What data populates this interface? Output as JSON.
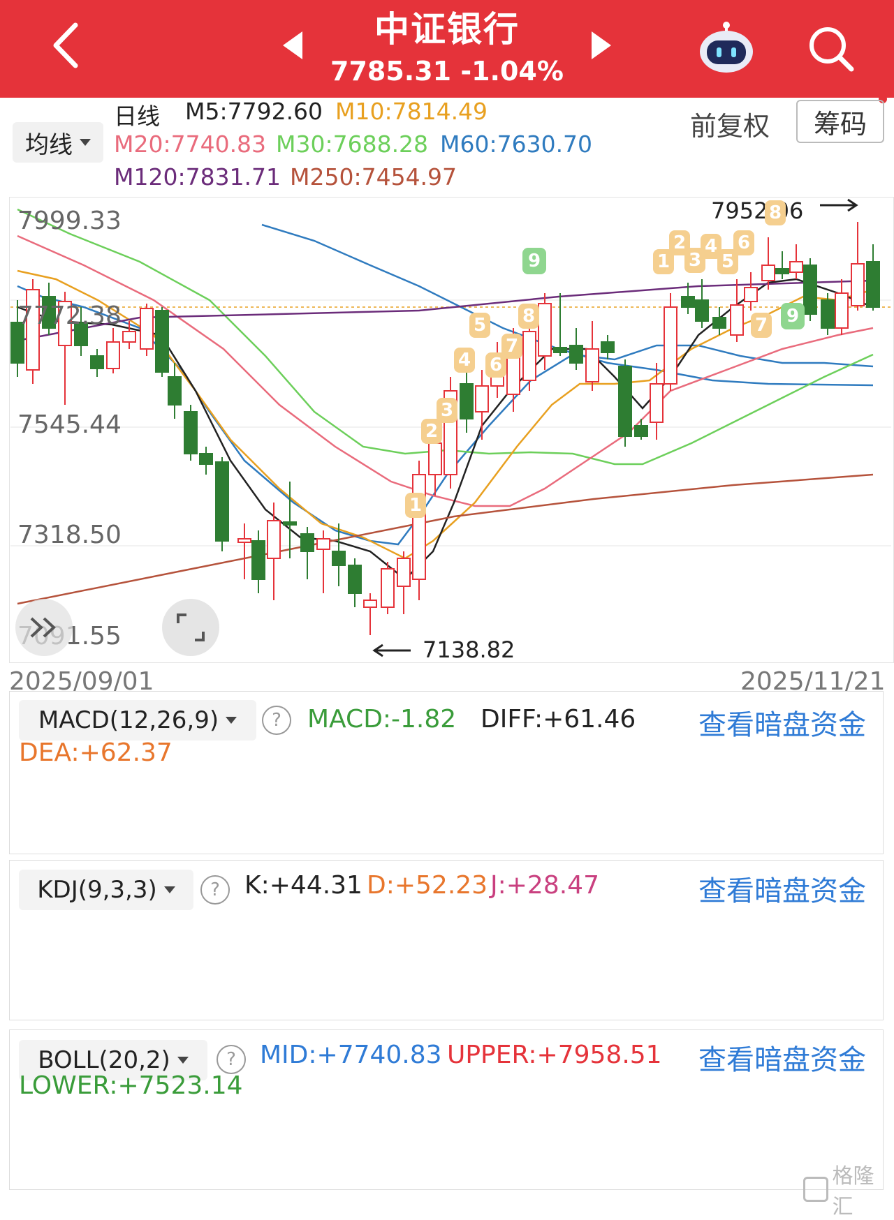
{
  "header": {
    "title": "中证银行",
    "price_change": "7785.31 -1.04%"
  },
  "ma_bar": {
    "selector": "均线",
    "period": "日线",
    "m5": "M5:7792.60",
    "m10": "M10:7814.49",
    "m20": "M20:7740.83",
    "m30": "M30:7688.28",
    "m60": "M60:7630.70",
    "m120": "M120:7831.71",
    "m250": "M250:7454.97",
    "adjust": "前复权",
    "chips_button": "筹码"
  },
  "colors": {
    "brand": "#e5333a",
    "up": "#e5333a",
    "down": "#2e7d32",
    "m5": "#222222",
    "m10": "#e8a020",
    "m20": "#e96b7c",
    "m30": "#6ccf5a",
    "m60": "#2f7bbf",
    "m120": "#6b2c7a",
    "m250": "#b5523b"
  },
  "main_chart": {
    "y_ticks": [
      "7999.33",
      "7772.38",
      "7545.44",
      "7318.50",
      "7091.55"
    ],
    "high_label": "7952.06",
    "low_label": "7138.82",
    "date_start": "2025/09/01",
    "date_end": "2025/11/21",
    "pills_up": [
      "1",
      "2",
      "3",
      "4",
      "5",
      "6",
      "7",
      "8",
      "9"
    ],
    "pills_down": [
      "1",
      "2",
      "3",
      "4",
      "5",
      "6",
      "7",
      "8",
      "9"
    ]
  },
  "macd": {
    "selector": "MACD(12,26,9)",
    "macd": "MACD:-1.82",
    "diff": "DIFF:+61.46",
    "dea": "DEA:+62.37",
    "link": "查看暗盘资金"
  },
  "kdj": {
    "selector": "KDJ(9,3,3)",
    "k": "K:+44.31",
    "d": "D:+52.23",
    "j": "J:+28.47",
    "link": "查看暗盘资金"
  },
  "boll": {
    "selector": "BOLL(20,2)",
    "mid": "MID:+7740.83",
    "upper": "UPPER:+7958.51",
    "lower": "LOWER:+7523.14",
    "link": "查看暗盘资金"
  },
  "watermark": "格隆汇"
}
